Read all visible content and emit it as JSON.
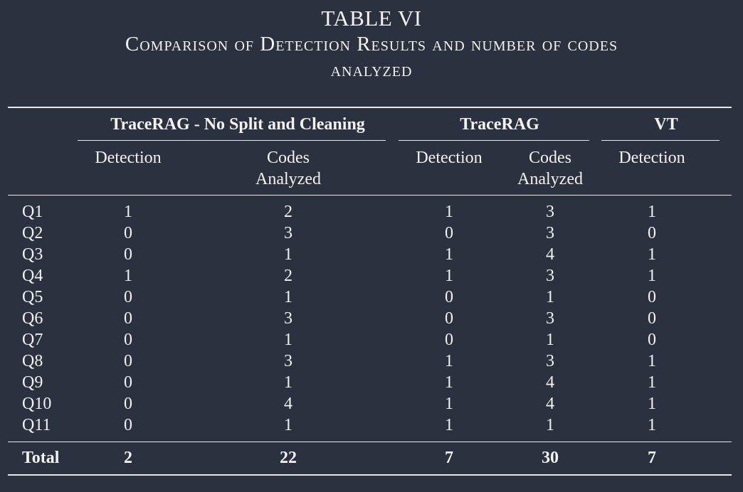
{
  "caption": {
    "number": "TABLE VI",
    "line1": "Comparison of Detection Results and number of codes",
    "line2": "analyzed"
  },
  "groups": {
    "g1": "TraceRAG - No Split and Cleaning",
    "g2": "TraceRAG",
    "g3": "VT"
  },
  "subheaders": {
    "detection": "Detection",
    "codes_line1": "Codes",
    "codes_line2": "Analyzed"
  },
  "rows": [
    {
      "label": "Q1",
      "v": [
        "1",
        "2",
        "1",
        "3",
        "1"
      ]
    },
    {
      "label": "Q2",
      "v": [
        "0",
        "3",
        "0",
        "3",
        "0"
      ]
    },
    {
      "label": "Q3",
      "v": [
        "0",
        "1",
        "1",
        "4",
        "1"
      ]
    },
    {
      "label": "Q4",
      "v": [
        "1",
        "2",
        "1",
        "3",
        "1"
      ]
    },
    {
      "label": "Q5",
      "v": [
        "0",
        "1",
        "0",
        "1",
        "0"
      ]
    },
    {
      "label": "Q6",
      "v": [
        "0",
        "3",
        "0",
        "3",
        "0"
      ]
    },
    {
      "label": "Q7",
      "v": [
        "0",
        "1",
        "0",
        "1",
        "0"
      ]
    },
    {
      "label": "Q8",
      "v": [
        "0",
        "3",
        "1",
        "3",
        "1"
      ]
    },
    {
      "label": "Q9",
      "v": [
        "0",
        "1",
        "1",
        "4",
        "1"
      ]
    },
    {
      "label": "Q10",
      "v": [
        "0",
        "4",
        "1",
        "4",
        "1"
      ]
    },
    {
      "label": "Q11",
      "v": [
        "0",
        "1",
        "1",
        "1",
        "1"
      ]
    }
  ],
  "total": {
    "label": "Total",
    "v": [
      "2",
      "22",
      "7",
      "30",
      "7"
    ]
  }
}
